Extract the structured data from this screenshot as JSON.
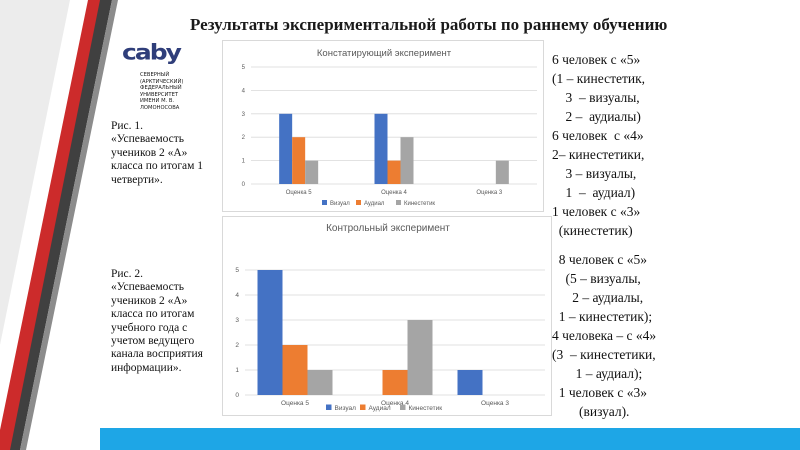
{
  "slide": {
    "title": "Результаты экспериментальной работы по раннему обучению",
    "logo": {
      "name": "caby",
      "subtitle": "Северный (Арктический) федеральный университет имени М. В. Ломоносова"
    }
  },
  "captions": [
    "Рис. 1. «Успеваемость учеников 2 «А» класса по итогам 1 четверти».",
    "Рис. 2. «Успеваемость учеников 2 «А» класса по итогам учебного года с учетом ведущего канала восприятия информации»."
  ],
  "side_text_1": [
    "6 человек с «5»",
    "(1 – кинестетик,",
    "    3  – визуалы,",
    "    2 –  аудиалы)",
    "6 человек  с «4»",
    "2– кинестетики,",
    "    3 – визуалы,",
    "    1  –  аудиал)",
    "1 человек с «3»",
    "  (кинестетик)"
  ],
  "side_text_2": [
    "  8 человек с «5»",
    "    (5 – визуалы,",
    "      2 – аудиалы,",
    "  1 – кинестетик);",
    "4 человека – с «4»",
    "(3  – кинестетики,",
    "       1 – аудиал);",
    "  1 человек с «3»",
    "        (визуал)."
  ],
  "colors": {
    "visual": "#4472c4",
    "audial": "#ed7d31",
    "kinest": "#a5a5a5",
    "accent_bar": "#1ea6e6",
    "stripe_red": "#cc2b2b",
    "stripe_dark": "#404040"
  },
  "chart_data": [
    {
      "type": "bar",
      "title": "Констатирующий эксперимент",
      "categories": [
        "Оценка 5",
        "Оценка 4",
        "Оценка 3"
      ],
      "series": [
        {
          "name": "Визуал",
          "values": [
            3,
            3,
            0
          ]
        },
        {
          "name": "Аудиал",
          "values": [
            2,
            1,
            0
          ]
        },
        {
          "name": "Кинестетик",
          "values": [
            1,
            2,
            1
          ]
        }
      ],
      "ylim": [
        0,
        5
      ],
      "yticks": [
        0,
        1,
        2,
        3,
        4,
        5
      ],
      "grid": true,
      "legend": "bottom"
    },
    {
      "type": "bar",
      "title": "Контрольный эксперимент",
      "categories": [
        "Оценка 5",
        "Оценка 4",
        "Оценка 3"
      ],
      "series": [
        {
          "name": "Визуал",
          "values": [
            5,
            0,
            1
          ]
        },
        {
          "name": "Аудиал",
          "values": [
            2,
            1,
            0
          ]
        },
        {
          "name": "Кинестетик",
          "values": [
            1,
            3,
            0
          ]
        }
      ],
      "ylim": [
        0,
        5
      ],
      "yticks": [
        0,
        1,
        2,
        3,
        4,
        5
      ],
      "grid": true,
      "legend": "bottom"
    }
  ]
}
